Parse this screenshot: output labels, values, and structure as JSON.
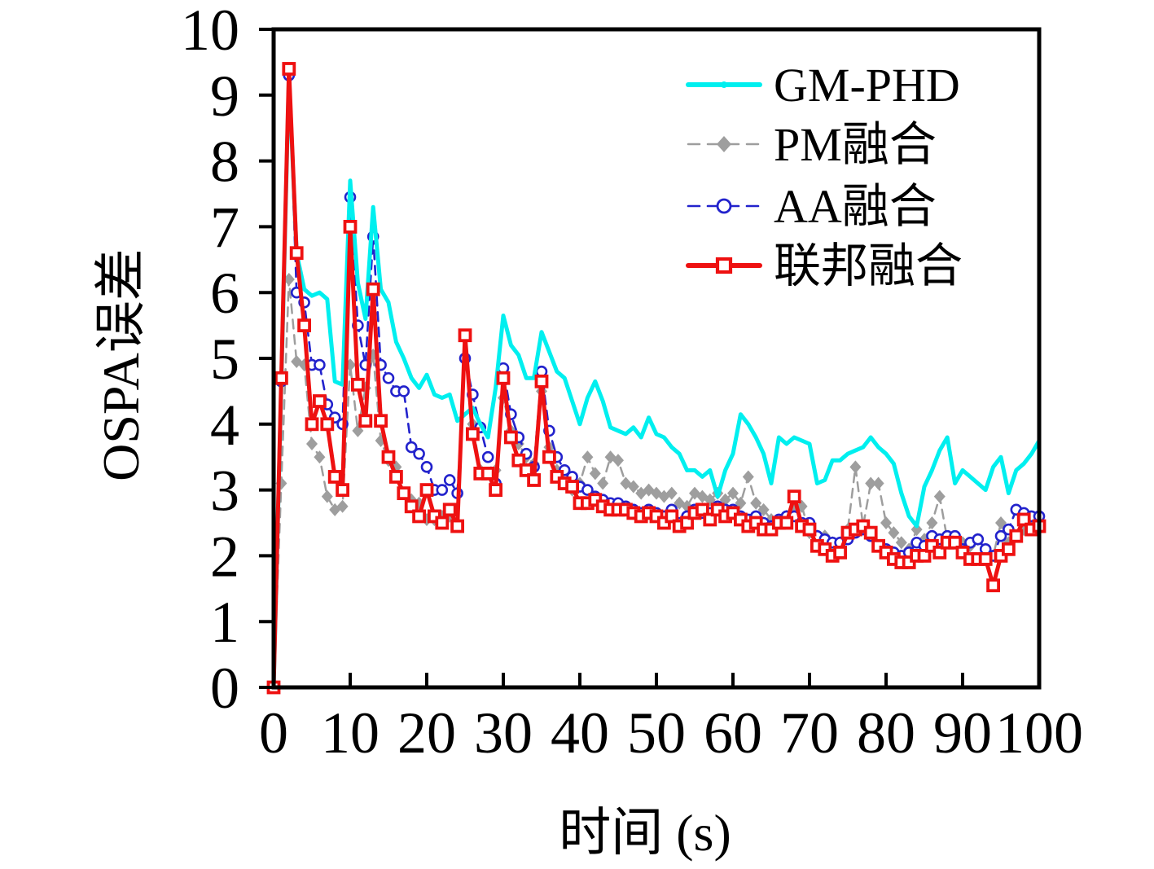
{
  "chart_data": {
    "type": "line",
    "title": "",
    "xlabel": "时间 (s)",
    "ylabel": "OSPA误差",
    "xlim": [
      0,
      100
    ],
    "ylim": [
      0,
      10
    ],
    "xticks": [
      0,
      10,
      20,
      30,
      40,
      50,
      60,
      70,
      80,
      90,
      100
    ],
    "yticks": [
      0,
      1,
      2,
      3,
      4,
      5,
      6,
      7,
      8,
      9,
      10
    ],
    "grid": false,
    "legend_position": "top-right-inside",
    "x_step": 1,
    "series": [
      {
        "name": "GM-PHD",
        "color": "#00EFEF",
        "line_style": "solid",
        "line_width": 5,
        "marker": "none",
        "values": [
          0,
          4.6,
          9.3,
          6.6,
          6.05,
          5.95,
          6.0,
          5.9,
          4.65,
          4.6,
          7.7,
          6.15,
          5.6,
          7.3,
          6.05,
          5.85,
          5.25,
          5.0,
          4.7,
          4.55,
          4.75,
          4.45,
          4.4,
          4.45,
          4.05,
          4.15,
          4.25,
          4.0,
          3.8,
          4.55,
          5.65,
          5.2,
          5.05,
          4.7,
          4.7,
          5.4,
          5.1,
          4.8,
          4.7,
          4.35,
          4.0,
          4.4,
          4.65,
          4.35,
          3.95,
          3.9,
          3.85,
          3.95,
          3.8,
          4.1,
          3.85,
          3.8,
          3.65,
          3.55,
          3.3,
          3.3,
          3.2,
          3.3,
          2.9,
          3.3,
          3.55,
          4.15,
          4.0,
          3.8,
          3.55,
          3.1,
          3.8,
          3.7,
          3.8,
          3.75,
          3.7,
          3.1,
          3.15,
          3.45,
          3.45,
          3.55,
          3.6,
          3.65,
          3.8,
          3.65,
          3.55,
          3.4,
          2.95,
          2.6,
          2.45,
          3.05,
          3.3,
          3.6,
          3.8,
          3.1,
          3.3,
          3.2,
          3.1,
          3.0,
          3.35,
          3.5,
          2.95,
          3.3,
          3.4,
          3.55,
          3.75
        ]
      },
      {
        "name": "PM融合",
        "color": "#9E9E9E",
        "line_style": "dashed",
        "line_width": 2.5,
        "marker": "diamond",
        "values": [
          0,
          3.1,
          6.2,
          4.95,
          4.9,
          3.7,
          3.5,
          2.9,
          2.7,
          2.75,
          4.9,
          3.9,
          4.55,
          5.05,
          3.75,
          3.45,
          3.35,
          2.95,
          2.85,
          2.8,
          2.55,
          2.55,
          2.6,
          2.6,
          2.45,
          5.3,
          4.0,
          3.3,
          3.25,
          3.3,
          4.4,
          3.9,
          3.7,
          3.5,
          3.4,
          4.5,
          3.65,
          3.3,
          3.1,
          3.0,
          3.1,
          3.5,
          3.25,
          3.1,
          3.5,
          3.45,
          3.1,
          3.05,
          2.95,
          3.0,
          2.95,
          2.9,
          2.95,
          2.8,
          2.75,
          2.95,
          2.9,
          2.85,
          2.95,
          2.85,
          2.95,
          2.8,
          3.2,
          2.8,
          2.7,
          2.55,
          2.5,
          2.6,
          2.7,
          2.75,
          2.35,
          2.3,
          2.3,
          2.2,
          2.2,
          2.4,
          3.35,
          2.45,
          3.1,
          3.1,
          2.5,
          2.35,
          2.2,
          2.1,
          2.4,
          2.25,
          2.5,
          2.9,
          2.25,
          2.2,
          2.2,
          2.15,
          2.25,
          2.1,
          2.0,
          2.5,
          2.2,
          2.3,
          2.4,
          2.5,
          2.45
        ]
      },
      {
        "name": "AA融合",
        "color": "#2222CC",
        "line_style": "dashed",
        "line_width": 2.6,
        "marker": "circle",
        "values": [
          0,
          4.65,
          9.3,
          6.0,
          5.85,
          4.9,
          4.9,
          4.3,
          4.1,
          4.0,
          7.45,
          5.5,
          4.9,
          6.85,
          4.9,
          4.7,
          4.5,
          4.5,
          3.65,
          3.55,
          3.35,
          3.0,
          3.0,
          3.15,
          2.95,
          5.0,
          4.45,
          3.95,
          3.5,
          3.1,
          4.85,
          4.15,
          3.8,
          3.55,
          3.35,
          4.8,
          3.9,
          3.5,
          3.3,
          3.2,
          3.05,
          3.0,
          2.9,
          2.85,
          2.8,
          2.8,
          2.75,
          2.7,
          2.65,
          2.7,
          2.65,
          2.6,
          2.7,
          2.5,
          2.6,
          2.7,
          2.65,
          2.65,
          2.75,
          2.7,
          2.7,
          2.6,
          2.55,
          2.6,
          2.5,
          2.45,
          2.55,
          2.6,
          2.6,
          2.5,
          2.5,
          2.3,
          2.25,
          2.2,
          2.2,
          2.25,
          2.35,
          2.4,
          2.3,
          2.15,
          2.1,
          2.05,
          2.0,
          2.05,
          2.2,
          2.15,
          2.3,
          2.25,
          2.3,
          2.3,
          2.1,
          2.2,
          2.25,
          2.1,
          2.0,
          2.3,
          2.4,
          2.7,
          2.65,
          2.6,
          2.6
        ]
      },
      {
        "name": "联邦融合",
        "color": "#EE1111",
        "line_style": "solid",
        "line_width": 5,
        "marker": "square",
        "values": [
          0,
          4.7,
          9.4,
          6.6,
          5.5,
          4.0,
          4.35,
          4.0,
          3.2,
          3.0,
          7.0,
          4.6,
          4.05,
          6.05,
          4.05,
          3.5,
          3.2,
          2.95,
          2.75,
          2.6,
          3.0,
          2.6,
          2.5,
          2.7,
          2.45,
          5.35,
          3.85,
          3.25,
          3.25,
          3.0,
          4.7,
          3.8,
          3.45,
          3.3,
          3.15,
          4.65,
          3.5,
          3.2,
          3.1,
          3.05,
          2.8,
          2.8,
          2.85,
          2.75,
          2.7,
          2.7,
          2.7,
          2.65,
          2.6,
          2.65,
          2.6,
          2.5,
          2.6,
          2.45,
          2.5,
          2.65,
          2.7,
          2.55,
          2.7,
          2.6,
          2.65,
          2.55,
          2.45,
          2.5,
          2.4,
          2.4,
          2.5,
          2.5,
          2.9,
          2.45,
          2.4,
          2.15,
          2.1,
          2.0,
          2.05,
          2.35,
          2.4,
          2.45,
          2.35,
          2.15,
          2.05,
          1.95,
          1.9,
          1.9,
          2.0,
          2.0,
          2.15,
          2.05,
          2.2,
          2.2,
          2.05,
          1.95,
          1.95,
          1.95,
          1.55,
          2.0,
          2.1,
          2.3,
          2.55,
          2.4,
          2.45
        ]
      }
    ]
  }
}
